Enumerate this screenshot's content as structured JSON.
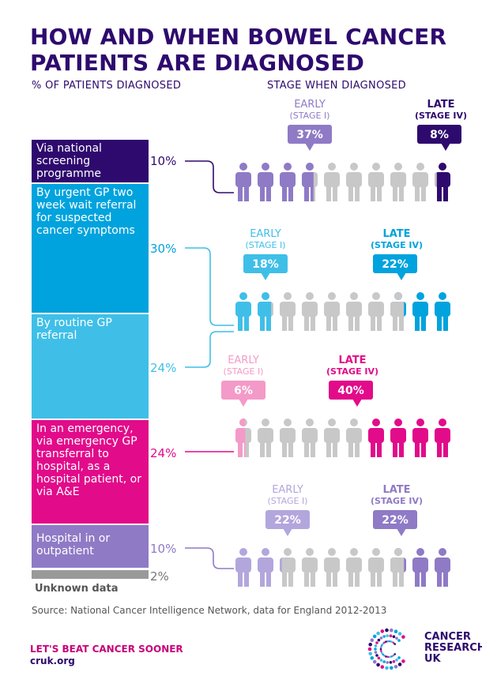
{
  "title": "HOW AND WHEN BOWEL CANCER PATIENTS ARE DIAGNOSED",
  "left_header": "% OF PATIENTS DIAGNOSED",
  "right_header": "STAGE WHEN DIAGNOSED",
  "chart_data": {
    "type": "stacked-bar-with-pictograms",
    "title": "HOW AND WHEN BOWEL CANCER PATIENTS ARE DIAGNOSED",
    "routes": [
      {
        "label": "Via national screening programme",
        "percent": 10,
        "early_percent": 37,
        "late_percent": 8,
        "color": "#2e0a6e"
      },
      {
        "label": "By urgent GP two week wait referral for suspected cancer symptoms",
        "percent": 30,
        "early_percent": 18,
        "late_percent": 22,
        "color": "#00a3dd"
      },
      {
        "label": "By routine GP referral",
        "percent": 24,
        "color": "#3fbfe8"
      },
      {
        "label": "In an emergency, via emergency GP transferral to hospital, as a hospital patient, or via A&E",
        "percent": 24,
        "early_percent": 6,
        "late_percent": 40,
        "color": "#e20b8a"
      },
      {
        "label": "Hospital in or outpatient",
        "percent": 10,
        "early_percent": 22,
        "late_percent": 22,
        "color": "#8f7ac6"
      },
      {
        "label": "Unknown data",
        "percent": 2,
        "color": "#999999"
      }
    ],
    "early_label": "EARLY",
    "early_stage": "(STAGE I)",
    "late_label": "LATE",
    "late_stage": "(STAGE IV)"
  },
  "segments": [
    {
      "label": "Via national screening programme",
      "pct": "10%"
    },
    {
      "label": "By urgent GP two week wait referral for suspected cancer symptoms",
      "pct": "30%"
    },
    {
      "label": "By routine GP referral",
      "pct": "24%"
    },
    {
      "label": "In an emergency, via emergency GP transferral to hospital, as a hospital patient, or via A&E",
      "pct": "24%"
    },
    {
      "label": "Hospital in or outpatient",
      "pct": "10%"
    },
    {
      "label": "Unknown data",
      "pct": "2%"
    }
  ],
  "rows": [
    {
      "early_label": "EARLY",
      "early_stage": "(STAGE I)",
      "early_pct": "37%",
      "late_label": "LATE",
      "late_stage": "(STAGE IV)",
      "late_pct": "8%",
      "early_color": "#8f7ac6",
      "mid_color": "#c8c8c8",
      "late_color": "#2e0a6e"
    },
    {
      "early_label": "EARLY",
      "early_stage": "(STAGE I)",
      "early_pct": "18%",
      "late_label": "LATE",
      "late_stage": "(STAGE IV)",
      "late_pct": "22%",
      "early_color": "#3fbfe8",
      "mid_color": "#c8c8c8",
      "late_color": "#00a3dd"
    },
    {
      "early_label": "EARLY",
      "early_stage": "(STAGE I)",
      "early_pct": "6%",
      "late_label": "LATE",
      "late_stage": "(STAGE IV)",
      "late_pct": "40%",
      "early_color": "#f49ac8",
      "mid_color": "#c8c8c8",
      "late_color": "#e20b8a"
    },
    {
      "early_label": "EARLY",
      "early_stage": "(STAGE I)",
      "early_pct": "22%",
      "late_label": "LATE",
      "late_stage": "(STAGE IV)",
      "late_pct": "22%",
      "early_color": "#b3a6dd",
      "mid_color": "#c8c8c8",
      "late_color": "#8f7ac6"
    }
  ],
  "source": "Source: National Cancer Intelligence Network, data for England 2012-2013",
  "slogan": "LET'S BEAT CANCER SOONER",
  "url": "cruk.org",
  "logo_line1": "CANCER",
  "logo_line2": "RESEARCH",
  "logo_line3": "UK"
}
